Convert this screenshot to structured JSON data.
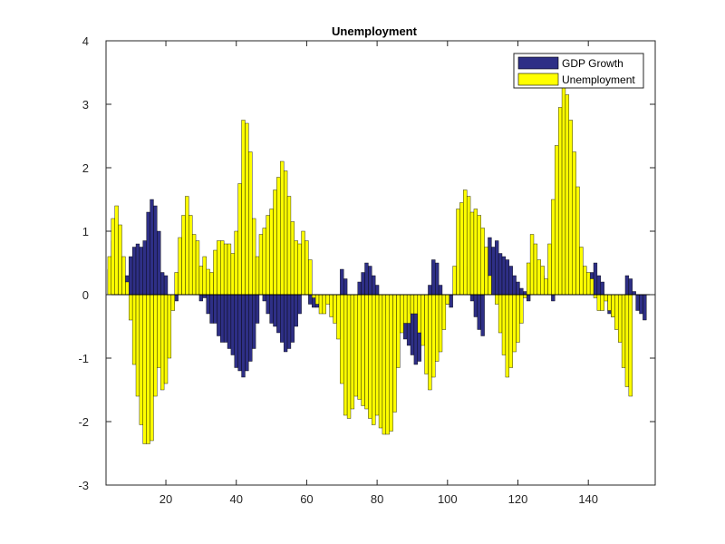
{
  "chart_data": {
    "type": "bar",
    "title": "Unemployment",
    "xlabel": "",
    "ylabel": "",
    "xlim": [
      3,
      159
    ],
    "ylim": [
      -3,
      4
    ],
    "xticks": [
      20,
      40,
      60,
      80,
      100,
      120,
      140
    ],
    "yticks": [
      -3,
      -2,
      -1,
      0,
      1,
      2,
      3,
      4
    ],
    "x_start": 4,
    "bar_width": 1,
    "grid": false,
    "legend_position": "top-right",
    "series": [
      {
        "name": "GDP Growth",
        "color": "#2e2f86",
        "values": [
          0.4,
          0.85,
          0.5,
          0.3,
          0.2,
          0.3,
          0.6,
          0.75,
          0.8,
          0.75,
          0.85,
          1.3,
          1.5,
          1.4,
          1.0,
          0.35,
          0.3,
          -0.05,
          -0.15,
          -0.1,
          0.0,
          0.2,
          0.15,
          0.6,
          0.35,
          0.1,
          -0.1,
          -0.05,
          -0.3,
          -0.45,
          -0.45,
          -0.65,
          -0.75,
          -0.75,
          -0.85,
          -0.95,
          -1.15,
          -1.2,
          -1.3,
          -1.2,
          -1.05,
          -0.85,
          -0.45,
          0.0,
          -0.1,
          -0.3,
          -0.45,
          -0.5,
          -0.6,
          -0.75,
          -0.9,
          -0.85,
          -0.75,
          -0.5,
          -0.3,
          0.0,
          0.0,
          -0.15,
          -0.2,
          -0.2,
          -0.15,
          -0.05,
          0.0,
          -0.2,
          -0.1,
          -0.05,
          0.4,
          0.25,
          0.0,
          -0.1,
          -0.05,
          0.2,
          0.35,
          0.5,
          0.45,
          0.3,
          0.15,
          -0.15,
          -0.2,
          -0.3,
          -0.3,
          -0.35,
          -0.4,
          -0.5,
          -0.7,
          -0.8,
          -0.95,
          -1.1,
          -1.05,
          -0.75,
          0.0,
          0.15,
          0.55,
          0.5,
          0.15,
          0.0,
          -0.15,
          -0.2,
          0.0,
          0.05,
          0.4,
          0.45,
          0.35,
          -0.1,
          -0.35,
          -0.55,
          -0.65,
          0.1,
          0.9,
          0.75,
          0.85,
          0.65,
          0.6,
          0.55,
          0.45,
          0.3,
          0.2,
          0.1,
          0.05,
          -0.1,
          0.1,
          0.25,
          0.0,
          0.3,
          0.2,
          0.1,
          -0.1,
          0.2,
          0.5,
          0.25,
          0.0,
          0.0,
          0.4,
          0.25,
          0.2,
          0.25,
          0.2,
          0.35,
          0.5,
          0.3,
          0.2,
          0.0,
          -0.3,
          -0.35,
          -0.2,
          -0.1,
          -0.15,
          0.3,
          0.25,
          0.05,
          -0.25,
          -0.3,
          -0.4
        ]
      },
      {
        "name": "Unemployment",
        "color": "#ffff00",
        "values": [
          0.6,
          1.2,
          1.4,
          1.1,
          0.6,
          0.2,
          -0.4,
          -1.1,
          -1.6,
          -2.05,
          -2.35,
          -2.35,
          -2.3,
          -1.6,
          -1.15,
          -1.5,
          -1.4,
          -1.0,
          -0.25,
          0.35,
          0.9,
          1.25,
          1.55,
          1.25,
          0.95,
          0.85,
          0.45,
          0.6,
          0.4,
          0.35,
          0.7,
          0.85,
          0.85,
          0.8,
          0.8,
          0.65,
          1.0,
          1.75,
          2.75,
          2.7,
          2.25,
          1.2,
          0.6,
          0.95,
          1.05,
          1.25,
          1.35,
          1.65,
          1.85,
          2.1,
          1.95,
          1.55,
          1.15,
          0.85,
          0.8,
          1.0,
          0.85,
          0.55,
          -0.05,
          -0.15,
          -0.3,
          -0.3,
          -0.15,
          -0.35,
          -0.45,
          -0.7,
          -1.4,
          -1.9,
          -1.95,
          -1.8,
          -1.6,
          -1.65,
          -1.75,
          -1.8,
          -1.95,
          -2.05,
          -1.9,
          -2.1,
          -2.2,
          -2.2,
          -2.15,
          -1.85,
          -1.15,
          -0.6,
          -0.45,
          -0.45,
          -0.3,
          -0.3,
          -0.6,
          -0.8,
          -1.25,
          -1.5,
          -1.3,
          -1.05,
          -0.9,
          -0.55,
          -0.15,
          0.0,
          0.45,
          1.35,
          1.45,
          1.65,
          1.55,
          1.3,
          1.35,
          1.25,
          1.05,
          0.75,
          0.3,
          0.0,
          -0.15,
          -0.6,
          -0.95,
          -1.3,
          -1.15,
          -0.9,
          -0.75,
          -0.45,
          -0.05,
          0.5,
          0.95,
          0.8,
          0.55,
          0.45,
          0.25,
          0.8,
          1.5,
          2.35,
          2.95,
          3.3,
          3.15,
          2.75,
          2.25,
          1.7,
          0.75,
          0.45,
          0.35,
          0.25,
          -0.05,
          -0.25,
          -0.25,
          -0.1,
          -0.25,
          -0.35,
          -0.55,
          -0.75,
          -1.15,
          -1.45,
          -1.6
        ]
      }
    ]
  }
}
